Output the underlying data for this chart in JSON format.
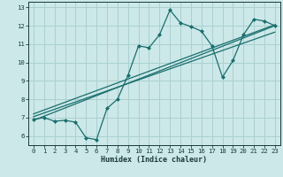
{
  "title": "",
  "xlabel": "Humidex (Indice chaleur)",
  "bg_color": "#cce8e8",
  "grid_color": "#aad0d0",
  "line_color": "#1a6e6e",
  "xlim": [
    -0.5,
    23.5
  ],
  "ylim": [
    5.5,
    13.3
  ],
  "xticks": [
    0,
    1,
    2,
    3,
    4,
    5,
    6,
    7,
    8,
    9,
    10,
    11,
    12,
    13,
    14,
    15,
    16,
    17,
    18,
    19,
    20,
    21,
    22,
    23
  ],
  "yticks": [
    6,
    7,
    8,
    9,
    10,
    11,
    12,
    13
  ],
  "data_x": [
    0,
    1,
    2,
    3,
    4,
    5,
    6,
    7,
    8,
    9,
    10,
    11,
    12,
    13,
    14,
    15,
    16,
    17,
    18,
    19,
    20,
    21,
    22,
    23
  ],
  "data_y": [
    6.9,
    7.0,
    6.8,
    6.85,
    6.75,
    5.9,
    5.8,
    7.5,
    8.0,
    9.3,
    10.9,
    10.8,
    11.5,
    12.85,
    12.15,
    11.95,
    11.7,
    10.9,
    9.2,
    10.1,
    11.5,
    12.35,
    12.25,
    12.0
  ],
  "line1_x": [
    0,
    23
  ],
  "line1_y": [
    6.85,
    12.0
  ],
  "line2_x": [
    0,
    23
  ],
  "line2_y": [
    7.05,
    11.65
  ],
  "line3_x": [
    0,
    23
  ],
  "line3_y": [
    7.2,
    12.05
  ]
}
